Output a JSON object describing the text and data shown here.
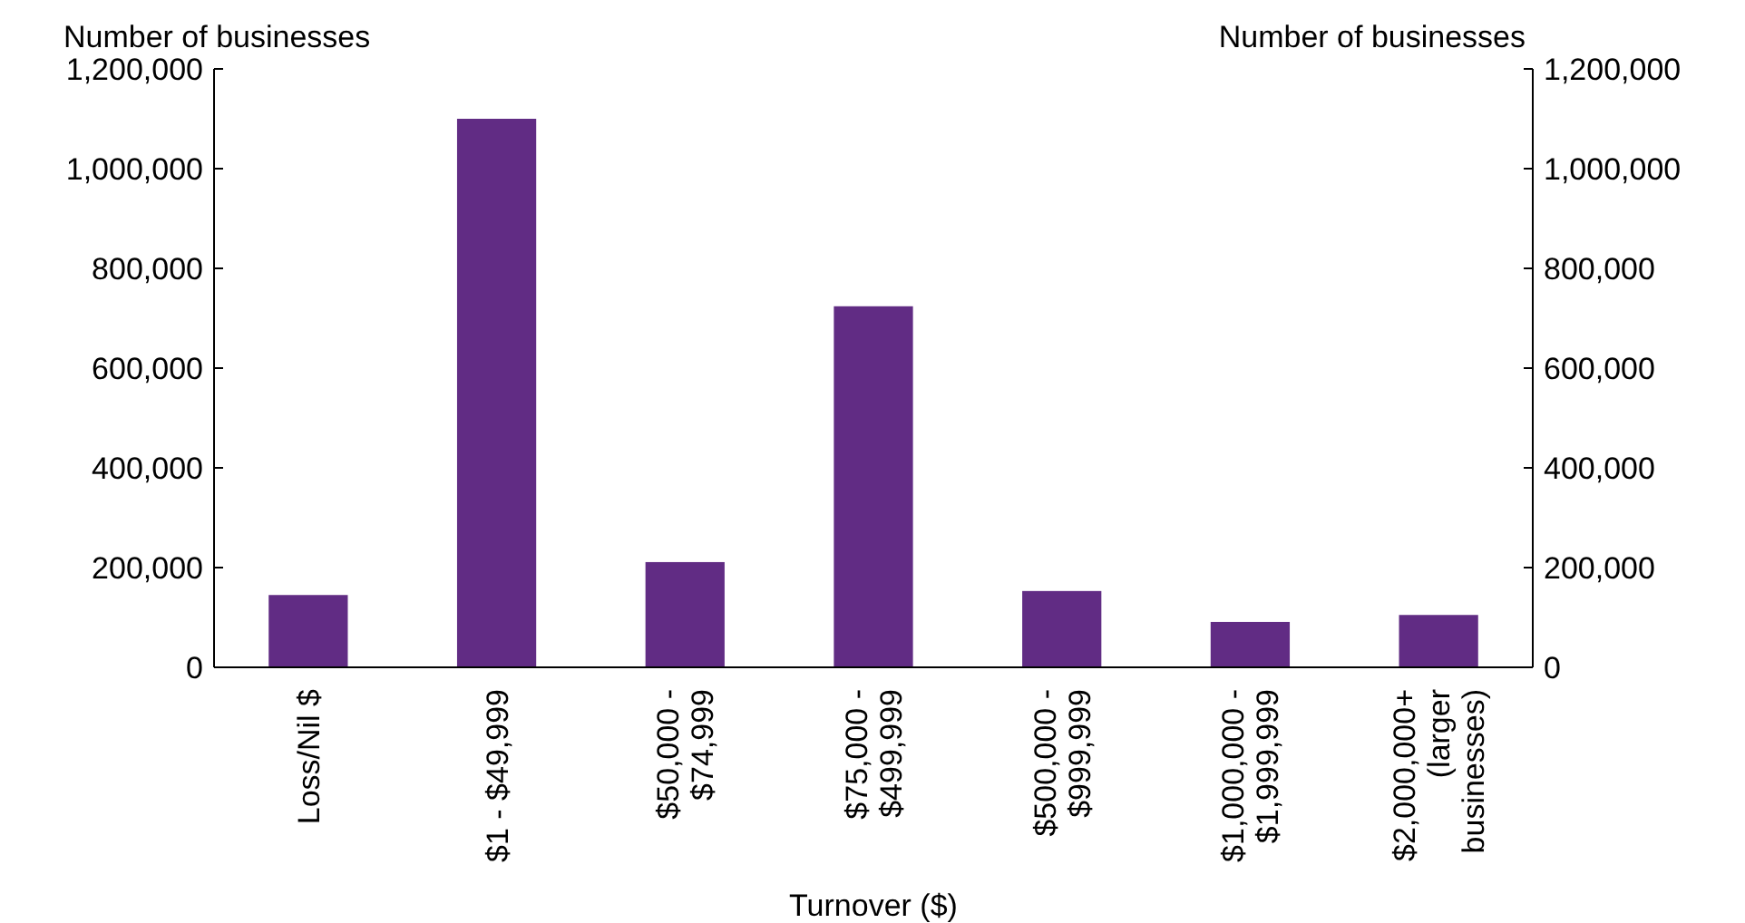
{
  "chart_data": {
    "type": "bar",
    "xlabel": "Turnover ($)",
    "ylabel": "Number of businesses",
    "y2label": "Number of businesses",
    "categories": [
      "Loss/Nil $",
      "$1 - $49,999",
      "$50,000 - $74,999",
      "$75,000 - $499,999",
      "$500,000 - $999,999",
      "$1,000,000 - $1,999,999",
      "$2,000,000+ (larger businesses)"
    ],
    "values": [
      145000,
      1100000,
      211000,
      724000,
      153000,
      91000,
      105000
    ],
    "color": "#612c84",
    "ylim": [
      0,
      1200000
    ],
    "yticks": [
      {
        "value": 0,
        "label": "0"
      },
      {
        "value": 200000,
        "label": "200,000"
      },
      {
        "value": 400000,
        "label": "400,000"
      },
      {
        "value": 600000,
        "label": "600,000"
      },
      {
        "value": 800000,
        "label": "800,000"
      },
      {
        "value": 1000000,
        "label": "1,000,000"
      },
      {
        "value": 1200000,
        "label": "1,200,000"
      }
    ],
    "y2lim": [
      0,
      1200000
    ],
    "y2ticks": [
      {
        "value": 0,
        "label": "0"
      },
      {
        "value": 200000,
        "label": "200,000"
      },
      {
        "value": 400000,
        "label": "400,000"
      },
      {
        "value": 600000,
        "label": "600,000"
      },
      {
        "value": 800000,
        "label": "800,000"
      },
      {
        "value": 1000000,
        "label": "1,000,000"
      },
      {
        "value": 1200000,
        "label": "1,200,000"
      }
    ],
    "grid": false
  }
}
